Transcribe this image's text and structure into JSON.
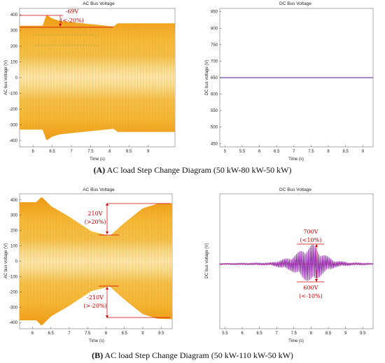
{
  "captions": {
    "A": {
      "letter": "(A)",
      "text": " AC load Step Change Diagram (50 kW-80 kW-50 kW)"
    },
    "B": {
      "letter": "(B)",
      "text": " AC load Step Change Diagram (50 kW-110 kW-50 kW)"
    }
  },
  "chart_data": [
    {
      "id": "a_ac",
      "type": "line",
      "title": "AC Bus Voltage",
      "xlabel": "Time (s)",
      "ylabel": "AC bus voltage (V)",
      "xlim": [
        5.65,
        9.7
      ],
      "ylim": [
        -440,
        440
      ],
      "xticks": [
        6,
        6.5,
        7,
        7.5,
        8,
        8.5,
        9
      ],
      "yticks": [
        400,
        300,
        200,
        100,
        0,
        -100,
        -200,
        -300,
        -400
      ],
      "series": [
        {
          "kind": "ac_envelope",
          "points": [
            [
              5.65,
              330
            ],
            [
              6.25,
              330
            ],
            [
              6.35,
              400
            ],
            [
              6.5,
              375
            ],
            [
              6.7,
              360
            ],
            [
              8.1,
              325
            ],
            [
              8.2,
              345
            ],
            [
              9.7,
              345
            ]
          ]
        }
      ],
      "annotations": [
        {
          "text": "-69V",
          "text2": "(<-20%)"
        }
      ]
    },
    {
      "id": "a_dc",
      "type": "line",
      "title": "DC Bus Voltage",
      "xlabel": "Time (s)",
      "ylabel": "DC bus voltage (V)",
      "xlim": [
        4.85,
        9.3
      ],
      "ylim": [
        440,
        860
      ],
      "xticks": [
        5,
        5.5,
        6,
        6.5,
        7,
        7.5,
        8,
        8.5,
        9
      ],
      "yticks": [
        850,
        800,
        750,
        700,
        650,
        600,
        550,
        500,
        450
      ],
      "series": [
        {
          "kind": "dc_flat",
          "value": 650
        }
      ]
    },
    {
      "id": "b_ac",
      "type": "line",
      "title": "AC Bus Voltage",
      "xlabel": "Time (s)",
      "ylabel": "AC bus voltage (V)",
      "xlim": [
        5.65,
        9.8
      ],
      "ylim": [
        -440,
        440
      ],
      "xticks": [
        6,
        6.5,
        7,
        7.5,
        8,
        8.5,
        9,
        9.5
      ],
      "yticks": [
        400,
        300,
        200,
        100,
        0,
        -100,
        -200,
        -300,
        -400
      ],
      "series": [
        {
          "kind": "ac_envelope",
          "points": [
            [
              5.65,
              385
            ],
            [
              6.1,
              385
            ],
            [
              6.25,
              420
            ],
            [
              6.5,
              360
            ],
            [
              7.0,
              290
            ],
            [
              7.6,
              195
            ],
            [
              8.1,
              165
            ],
            [
              8.5,
              250
            ],
            [
              9.0,
              345
            ],
            [
              9.4,
              375
            ],
            [
              9.8,
              378
            ]
          ]
        }
      ],
      "annotations": [
        {
          "text": "210V",
          "text2": "(>20%)"
        },
        {
          "text": "-210V",
          "text2": "(>-20%)"
        }
      ]
    },
    {
      "id": "b_dc",
      "type": "line",
      "title": "DC Bus Voltage",
      "xlabel": "Time (s)",
      "ylabel": "DC bus voltage (V)",
      "xlim": [
        5.35,
        9.8
      ],
      "ylim": [
        0,
        100
      ],
      "xticks": [
        5.5,
        6,
        6.5,
        7,
        7.5,
        8,
        8.5,
        9,
        9.5
      ],
      "yticks": [],
      "series": [
        {
          "kind": "dc_oscillation",
          "baseline": 650,
          "points": [
            [
              5.35,
              0.3
            ],
            [
              6.8,
              0.5
            ],
            [
              7.4,
              3
            ],
            [
              7.8,
              7
            ],
            [
              8.05,
              9
            ],
            [
              8.3,
              5
            ],
            [
              8.7,
              1.5
            ],
            [
              9.2,
              0.6
            ],
            [
              9.8,
              0.3
            ]
          ]
        }
      ],
      "annotations": [
        {
          "text": "700V",
          "text2": "(<10%)"
        },
        {
          "text": "600V",
          "text2": "(<-10%)"
        }
      ]
    }
  ]
}
